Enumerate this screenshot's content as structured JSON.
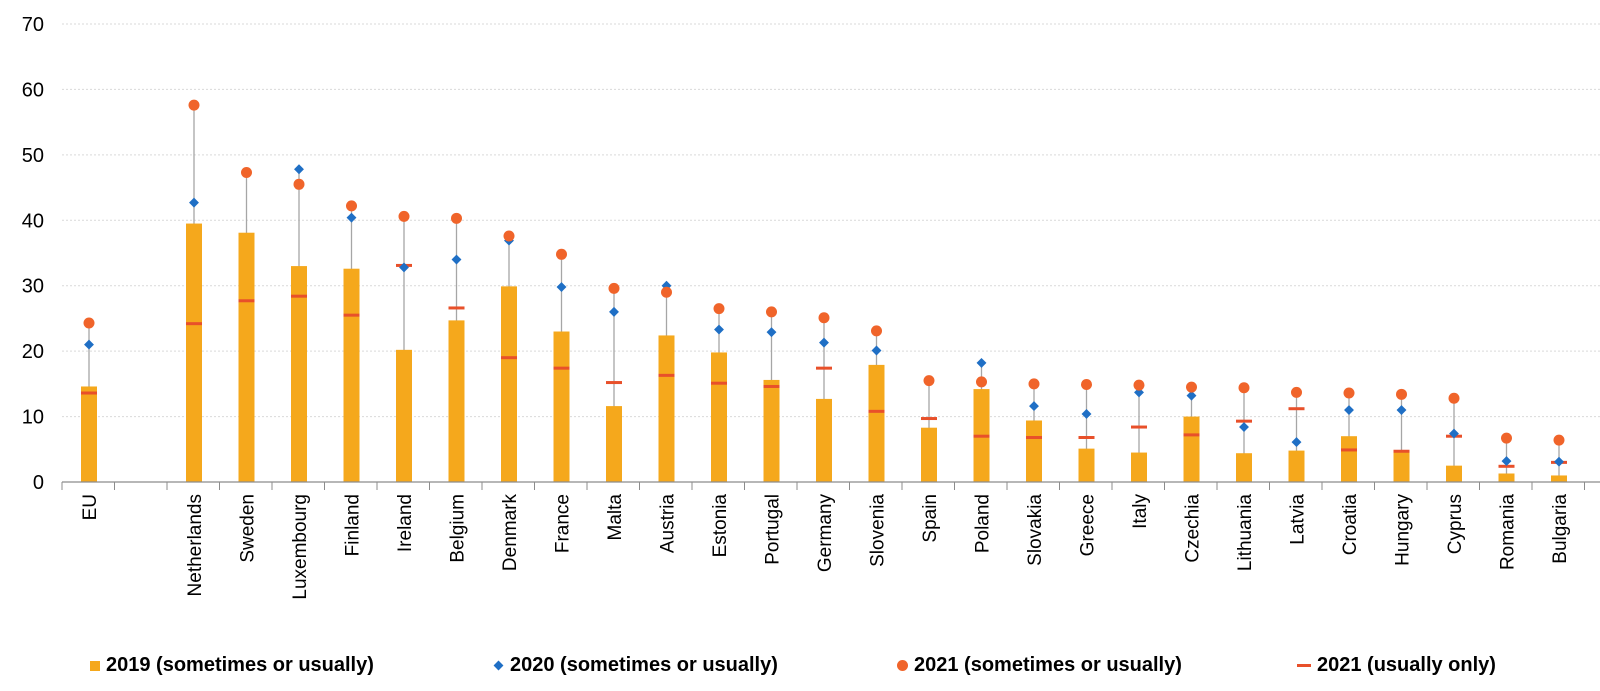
{
  "colors": {
    "bar_2019": "#f5a81c",
    "diamond_2020": "#1f6fc5",
    "dot_2021": "#f0642a",
    "dash_2021": "#e8502a",
    "whisker": "#a6a6a6",
    "grid": "#d9d9d9"
  },
  "chart_data": {
    "type": "bar",
    "title": "",
    "xlabel": "",
    "ylabel": "",
    "ylim": [
      0,
      70
    ],
    "yticks": [
      0,
      10,
      20,
      30,
      40,
      50,
      60,
      70
    ],
    "grid": true,
    "legend_position": "bottom",
    "categories": [
      "EU",
      "",
      "Netherlands",
      "Sweden",
      "Luxembourg",
      "Finland",
      "Ireland",
      "Belgium",
      "Denmark",
      "France",
      "Malta",
      "Austria",
      "Estonia",
      "Portugal",
      "Germany",
      "Slovenia",
      "Spain",
      "Poland",
      "Slovakia",
      "Greece",
      "Italy",
      "Czechia",
      "Lithuania",
      "Latvia",
      "Croatia",
      "Hungary",
      "Cyprus",
      "Romania",
      "Bulgaria"
    ],
    "series": [
      {
        "name": "2019 (sometimes or usually)",
        "mark": "bar",
        "values": [
          14.6,
          null,
          39.5,
          38.1,
          33.0,
          32.6,
          20.2,
          24.7,
          29.9,
          23.0,
          11.6,
          22.4,
          19.8,
          15.6,
          12.7,
          17.9,
          8.3,
          14.2,
          9.4,
          5.1,
          4.5,
          10.0,
          4.4,
          4.8,
          7.0,
          4.7,
          2.5,
          1.3,
          1.0
        ]
      },
      {
        "name": "2020 (sometimes or usually)",
        "mark": "diamond",
        "values": [
          21.0,
          null,
          42.7,
          null,
          47.8,
          40.4,
          32.8,
          34.0,
          36.9,
          29.8,
          26.0,
          30.0,
          23.3,
          22.9,
          21.3,
          20.1,
          15.4,
          18.2,
          11.6,
          10.4,
          13.7,
          13.2,
          8.4,
          6.1,
          11.0,
          11.0,
          7.4,
          3.2,
          3.1
        ]
      },
      {
        "name": "2021 (sometimes or usually)",
        "mark": "dot",
        "values": [
          24.3,
          null,
          57.6,
          47.3,
          45.5,
          42.2,
          40.6,
          40.3,
          37.6,
          34.8,
          29.6,
          29.0,
          26.5,
          26.0,
          25.1,
          23.1,
          15.5,
          15.3,
          15.0,
          14.9,
          14.8,
          14.5,
          14.4,
          13.7,
          13.6,
          13.4,
          12.8,
          6.7,
          6.4
        ]
      },
      {
        "name": "2021 (usually only)",
        "mark": "dash",
        "values": [
          13.6,
          null,
          24.2,
          27.7,
          28.4,
          25.5,
          33.1,
          26.6,
          19.0,
          17.4,
          15.2,
          16.3,
          15.1,
          14.6,
          17.4,
          10.8,
          9.7,
          7.0,
          6.8,
          6.8,
          8.4,
          7.2,
          9.3,
          11.2,
          4.9,
          4.7,
          7.0,
          2.4,
          3.0
        ]
      }
    ]
  }
}
